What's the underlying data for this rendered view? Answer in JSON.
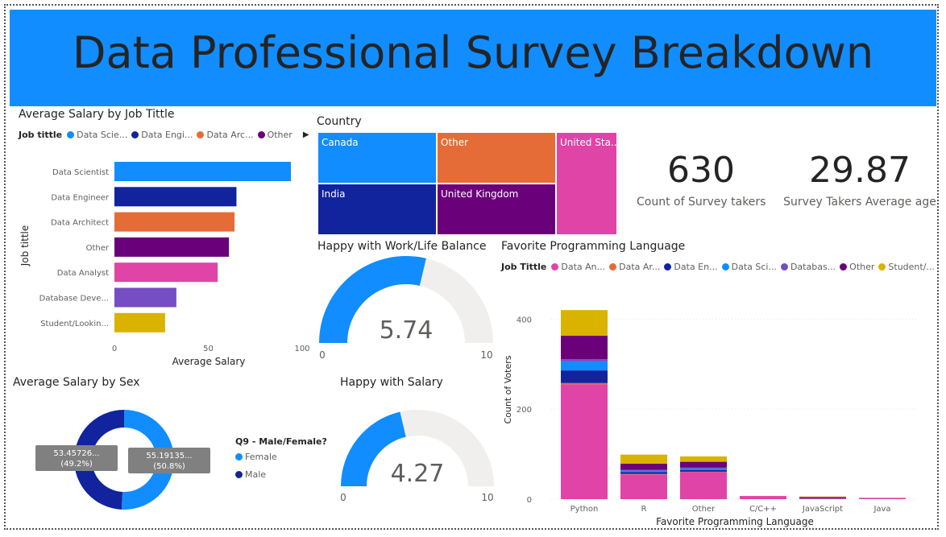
{
  "banner": {
    "title": "Data Professional Survey Breakdown"
  },
  "salary_by_job": {
    "title": "Average Salary by Job Tittle",
    "legend_title": "Job tittle",
    "legend_items": [
      {
        "label": "Data Scie...",
        "color": "#118dff"
      },
      {
        "label": "Data Engi...",
        "color": "#12239e"
      },
      {
        "label": "Data Arc...",
        "color": "#e66c37"
      },
      {
        "label": "Other",
        "color": "#6b007b"
      }
    ],
    "legend_more": "▶"
  },
  "country": {
    "title": "Country",
    "cells": [
      {
        "label": "Canada",
        "color": "#118dff"
      },
      {
        "label": "Other",
        "color": "#e66c37"
      },
      {
        "label": "United Sta...",
        "color": "#e044a7"
      },
      {
        "label": "India",
        "color": "#12239e"
      },
      {
        "label": "United Kingdom",
        "color": "#6b007b"
      }
    ]
  },
  "cards": {
    "count_value": "630",
    "count_label": "Count of Survey takers",
    "age_value": "29.87",
    "age_label": "Survey Takers Average age"
  },
  "work_life": {
    "title": "Happy with Work/Life Balance",
    "value": "5.74",
    "min": "0",
    "max": "10",
    "fraction": 0.574
  },
  "salary_happy": {
    "title": "Happy with Salary",
    "value": "4.27",
    "min": "0",
    "max": "10",
    "fraction": 0.427
  },
  "salary_by_sex": {
    "title": "Average Salary by Sex",
    "legend_title": "Q9 - Male/Female?",
    "legend_items": [
      {
        "label": "Female",
        "color": "#118dff"
      },
      {
        "label": "Male",
        "color": "#12239e"
      }
    ]
  },
  "fav_lang": {
    "title": "Favorite Programming Language",
    "legend_title": "Job Tittle",
    "legend_items": [
      {
        "label": "Data An...",
        "color": "#e044a7"
      },
      {
        "label": "Data Ar...",
        "color": "#e66c37"
      },
      {
        "label": "Data En...",
        "color": "#12239e"
      },
      {
        "label": "Data Sci...",
        "color": "#118dff"
      },
      {
        "label": "Databas...",
        "color": "#744ec2"
      },
      {
        "label": "Other",
        "color": "#6b007b"
      },
      {
        "label": "Student/...",
        "color": "#d9b300"
      }
    ]
  },
  "chart_data": [
    {
      "type": "bar",
      "orientation": "horizontal",
      "title": "Average Salary by Job Tittle",
      "xlabel": "Average Salary",
      "ylabel": "Job tittle",
      "xlim": [
        0,
        100
      ],
      "xticks": [
        "0",
        "50",
        "100"
      ],
      "categories": [
        "Data Scientist",
        "Data Engineer",
        "Data Architect",
        "Other",
        "Data Analyst",
        "Database Deve...",
        "Student/Lookin..."
      ],
      "values": [
        94,
        65,
        64,
        61,
        55,
        33,
        27
      ],
      "colors": [
        "#118dff",
        "#12239e",
        "#e66c37",
        "#6b007b",
        "#e044a7",
        "#744ec2",
        "#d9b300"
      ]
    },
    {
      "type": "treemap",
      "title": "Country",
      "categories": [
        "United Sta...",
        "Other",
        "Canada",
        "India",
        "United Kingdom"
      ]
    },
    {
      "type": "pie",
      "title": "Average Salary by Sex",
      "labels": [
        "Female",
        "Male"
      ],
      "values": [
        55.19,
        53.46
      ],
      "data_labels": [
        {
          "text": "55.19135...",
          "pct": "(50.8%)"
        },
        {
          "text": "53.45726...",
          "pct": "(49.2%)"
        }
      ],
      "colors": [
        "#118dff",
        "#12239e"
      ]
    },
    {
      "type": "bar",
      "stacked": true,
      "title": "Favorite Programming Language",
      "xlabel": "Favorite Programming Language",
      "ylabel": "Count of Voters",
      "ylim": [
        0,
        440
      ],
      "yticks": [
        "0",
        "200",
        "400"
      ],
      "categories": [
        "Python",
        "R",
        "Other",
        "C/C++",
        "JavaScript",
        "Java"
      ],
      "series": [
        {
          "name": "Data An...",
          "color": "#e044a7",
          "values": [
            255,
            55,
            60,
            7,
            2,
            3
          ]
        },
        {
          "name": "Data Ar...",
          "color": "#e66c37",
          "values": [
            3,
            1,
            1,
            0,
            0,
            0
          ]
        },
        {
          "name": "Data En...",
          "color": "#12239e",
          "values": [
            28,
            4,
            4,
            0,
            2,
            0
          ]
        },
        {
          "name": "Data Sci...",
          "color": "#118dff",
          "values": [
            20,
            3,
            3,
            0,
            0,
            0
          ]
        },
        {
          "name": "Databas...",
          "color": "#744ec2",
          "values": [
            5,
            2,
            2,
            0,
            0,
            0
          ]
        },
        {
          "name": "Other",
          "color": "#6b007b",
          "values": [
            52,
            14,
            13,
            0,
            1,
            0
          ]
        },
        {
          "name": "Student/...",
          "color": "#d9b300",
          "values": [
            57,
            20,
            12,
            0,
            1,
            0
          ]
        }
      ]
    }
  ]
}
